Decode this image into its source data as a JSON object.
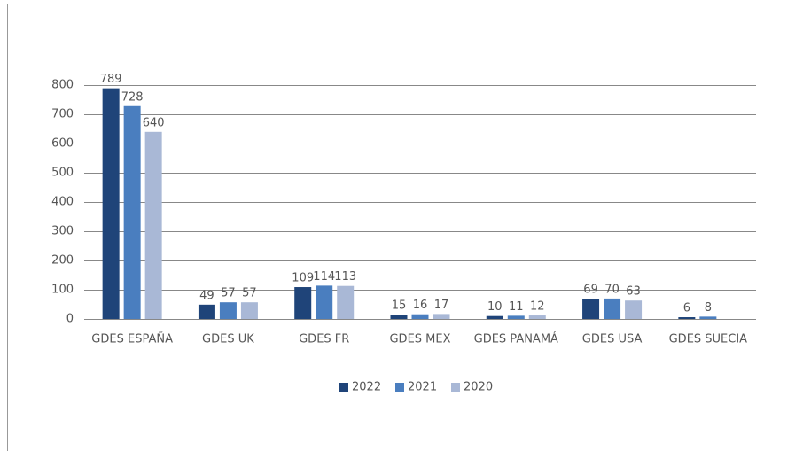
{
  "chart_data": {
    "type": "bar",
    "categories": [
      "GDES ESPAÑA",
      "GDES UK",
      "GDES FR",
      "GDES MEX",
      "GDES PANAMÁ",
      "GDES USA",
      "GDES SUECIA"
    ],
    "series": [
      {
        "name": "2022",
        "color": "#1f4479",
        "values": [
          789,
          49,
          109,
          15,
          10,
          69,
          6
        ]
      },
      {
        "name": "2021",
        "color": "#4a7ebf",
        "values": [
          728,
          57,
          114,
          16,
          11,
          70,
          8
        ]
      },
      {
        "name": "2020",
        "color": "#a9b8d6",
        "values": [
          640,
          57,
          113,
          17,
          12,
          63,
          null
        ]
      }
    ],
    "ylim": [
      0,
      800
    ],
    "yticks": [
      0,
      100,
      200,
      300,
      400,
      500,
      600,
      700,
      800
    ],
    "grid": true,
    "legend": "bottom"
  }
}
